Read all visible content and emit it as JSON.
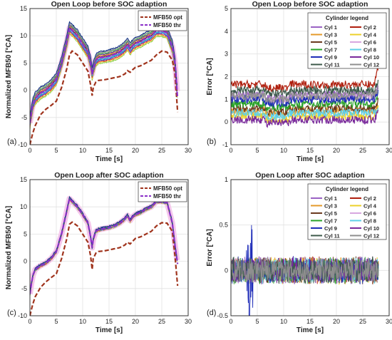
{
  "chart_data": [
    {
      "panel": "(a)",
      "type": "line",
      "title": "Open Loop before SOC adaption",
      "xlabel": "Time [s]",
      "ylabel": "Normalized MFB50 [°CA]",
      "xlim": [
        0,
        30
      ],
      "ylim": [
        -10,
        15
      ],
      "xticks": [
        "0",
        "5",
        "10",
        "15",
        "20",
        "25",
        "30"
      ],
      "yticks": [
        "-10",
        "-5",
        "0",
        "5",
        "10",
        "15"
      ],
      "grid": true,
      "legend_position": "top-right",
      "legend_title": "",
      "series": [
        {
          "name": "MFB50 opt",
          "color": "#a0341d",
          "style": "dashed",
          "x": [
            0,
            0.5,
            1,
            2,
            3,
            4,
            5,
            6,
            7,
            7.5,
            8,
            9,
            10,
            11,
            11.5,
            11.8,
            12,
            12.5,
            13,
            14,
            15,
            16,
            17,
            18,
            18.5,
            19,
            19.5,
            20,
            21,
            22,
            23,
            24,
            25,
            26,
            27,
            27.5,
            28
          ],
          "y": [
            -10,
            -8,
            -6.5,
            -4.5,
            -3.5,
            -2.8,
            -2,
            0.5,
            4,
            6.5,
            7.2,
            6.5,
            5,
            3.5,
            1,
            -1,
            0.5,
            1.5,
            1.8,
            1.9,
            2.1,
            2.3,
            2.5,
            3,
            3.6,
            3.3,
            3.8,
            4.2,
            4.5,
            5,
            5.5,
            6.5,
            7.2,
            7,
            5.5,
            3,
            -4
          ]
        },
        {
          "name": "MFB50 thr",
          "color": "#8b2fc9",
          "style": "dashed",
          "x": [
            0,
            0.3,
            0.6,
            1,
            2,
            3,
            4,
            5,
            6,
            7,
            7.5,
            8,
            9,
            10,
            11,
            11.5,
            11.8,
            12,
            12.5,
            13,
            14,
            15,
            16,
            17,
            18,
            18.5,
            19,
            19.5,
            20,
            21,
            22,
            23,
            24,
            25,
            26,
            27,
            27.5,
            28
          ],
          "y": [
            -6,
            -4,
            -2.5,
            -1.5,
            -0.5,
            0,
            0.8,
            2,
            5,
            9,
            11.5,
            11,
            10,
            8.5,
            7,
            5,
            3,
            4,
            5.5,
            6,
            6.1,
            6.3,
            6.6,
            7,
            7.8,
            8.4,
            7.6,
            8.2,
            8.6,
            9,
            9.6,
            10,
            11,
            11,
            10.6,
            8,
            5,
            -1.5
          ]
        }
      ]
    },
    {
      "panel": "(b)",
      "type": "line",
      "title": "Open Loop before SOC adaption",
      "xlabel": "Time [s]",
      "ylabel": "Error [°CA]",
      "xlim": [
        0,
        30
      ],
      "ylim": [
        -1,
        5
      ],
      "xticks": [
        "0",
        "5",
        "10",
        "15",
        "20",
        "25",
        "30"
      ],
      "yticks": [
        "-1",
        "0",
        "1",
        "2",
        "3",
        "4",
        "5"
      ],
      "grid": true,
      "legend_title": "Cylinder legend",
      "legend_position": "top-right",
      "series": [
        {
          "name": "Cyl 1",
          "color": "#9a62c4",
          "level": 1.2
        },
        {
          "name": "Cyl 2",
          "color": "#b0200f",
          "level": 1.65
        },
        {
          "name": "Cyl 3",
          "color": "#e49a2a",
          "level": 0.5
        },
        {
          "name": "Cyl 4",
          "color": "#ecd02a",
          "level": 0.25
        },
        {
          "name": "Cyl 5",
          "color": "#6b3a1e",
          "level": 0.6
        },
        {
          "name": "Cyl 6",
          "color": "#d8a7e0",
          "level": 1.1
        },
        {
          "name": "Cyl 7",
          "color": "#2aa32a",
          "level": 0.8
        },
        {
          "name": "Cyl 8",
          "color": "#5fd0e8",
          "level": 0.4
        },
        {
          "name": "Cyl 9",
          "color": "#1f2db8",
          "level": 1.0
        },
        {
          "name": "Cyl 10",
          "color": "#7a2a9c",
          "level": 0.1
        },
        {
          "name": "Cyl 11",
          "color": "#3c5a4a",
          "level": 1.4
        },
        {
          "name": "Cyl 12",
          "color": "#8f8f8f",
          "level": 1.15
        }
      ]
    },
    {
      "panel": "(c)",
      "type": "line",
      "title": "Open Loop after SOC adaption",
      "xlabel": "Time [s]",
      "ylabel": "Normalized MFB50 [°CA]",
      "xlim": [
        0,
        30
      ],
      "ylim": [
        -10,
        15
      ],
      "xticks": [
        "0",
        "5",
        "10",
        "15",
        "20",
        "25",
        "30"
      ],
      "yticks": [
        "-10",
        "-5",
        "0",
        "5",
        "10",
        "15"
      ],
      "grid": true,
      "legend_position": "top-right",
      "legend_title": "",
      "series": [
        {
          "name": "MFB50 opt",
          "color": "#a0341d",
          "style": "dashed",
          "x": [
            0,
            0.5,
            1,
            2,
            3,
            4,
            5,
            6,
            7,
            7.5,
            8,
            9,
            10,
            11,
            11.5,
            11.8,
            12,
            12.5,
            13,
            14,
            15,
            16,
            17,
            18,
            18.5,
            19,
            19.5,
            20,
            21,
            22,
            23,
            24,
            25,
            26,
            27,
            27.5,
            28
          ],
          "y": [
            -10,
            -8,
            -6.5,
            -4.8,
            -3.8,
            -3,
            -2.3,
            0.5,
            4.2,
            6.8,
            7.2,
            6.5,
            5,
            3.5,
            1,
            -1.5,
            0.5,
            1.5,
            1.8,
            1.9,
            2.1,
            2.3,
            2.5,
            3,
            3.5,
            3.2,
            3.7,
            4.2,
            4.5,
            5,
            5.5,
            6.5,
            7.1,
            7,
            5.5,
            1,
            -4.5
          ]
        },
        {
          "name": "MFB50 thr",
          "color": "#8b2fc9",
          "style": "dashed",
          "x": [
            0,
            0.3,
            0.6,
            1,
            2,
            3,
            4,
            5,
            6,
            7,
            7.5,
            8,
            9,
            10,
            11,
            11.5,
            11.8,
            12,
            12.5,
            13,
            14,
            15,
            16,
            17,
            18,
            18.5,
            19,
            19.5,
            20,
            21,
            22,
            23,
            24,
            25,
            26,
            27,
            27.5,
            28
          ],
          "y": [
            -6,
            -4,
            -2.5,
            -1.5,
            -0.8,
            -0.3,
            0.5,
            1.8,
            5,
            9.3,
            11.5,
            11,
            10,
            8.6,
            7,
            4.5,
            2.5,
            4,
            5.5,
            5.8,
            6,
            6.2,
            6.5,
            7,
            7.8,
            8.4,
            7.5,
            8.2,
            8.6,
            9,
            9.6,
            10,
            11,
            11,
            10.8,
            7,
            3,
            -0.5
          ]
        }
      ]
    },
    {
      "panel": "(d)",
      "type": "line",
      "title": "Open Loop after SOC adaption",
      "xlabel": "Time [s]",
      "ylabel": "Error [°CA]",
      "xlim": [
        0,
        30
      ],
      "ylim": [
        -0.5,
        1
      ],
      "xticks": [
        "0",
        "5",
        "10",
        "15",
        "20",
        "25",
        "30"
      ],
      "yticks": [
        "-0.5",
        "0",
        "0.5",
        "1"
      ],
      "grid": true,
      "legend_title": "Cylinder legend",
      "legend_position": "top-right",
      "series": [
        {
          "name": "Cyl 1",
          "color": "#9a62c4"
        },
        {
          "name": "Cyl 2",
          "color": "#b0200f"
        },
        {
          "name": "Cyl 3",
          "color": "#e49a2a"
        },
        {
          "name": "Cyl 4",
          "color": "#ecd02a"
        },
        {
          "name": "Cyl 5",
          "color": "#6b3a1e"
        },
        {
          "name": "Cyl 6",
          "color": "#d8a7e0"
        },
        {
          "name": "Cyl 7",
          "color": "#2aa32a"
        },
        {
          "name": "Cyl 8",
          "color": "#5fd0e8"
        },
        {
          "name": "Cyl 9",
          "color": "#1f2db8"
        },
        {
          "name": "Cyl 10",
          "color": "#7a2a9c"
        },
        {
          "name": "Cyl 11",
          "color": "#3c5a4a"
        },
        {
          "name": "Cyl 12",
          "color": "#8f8f8f"
        }
      ]
    }
  ]
}
